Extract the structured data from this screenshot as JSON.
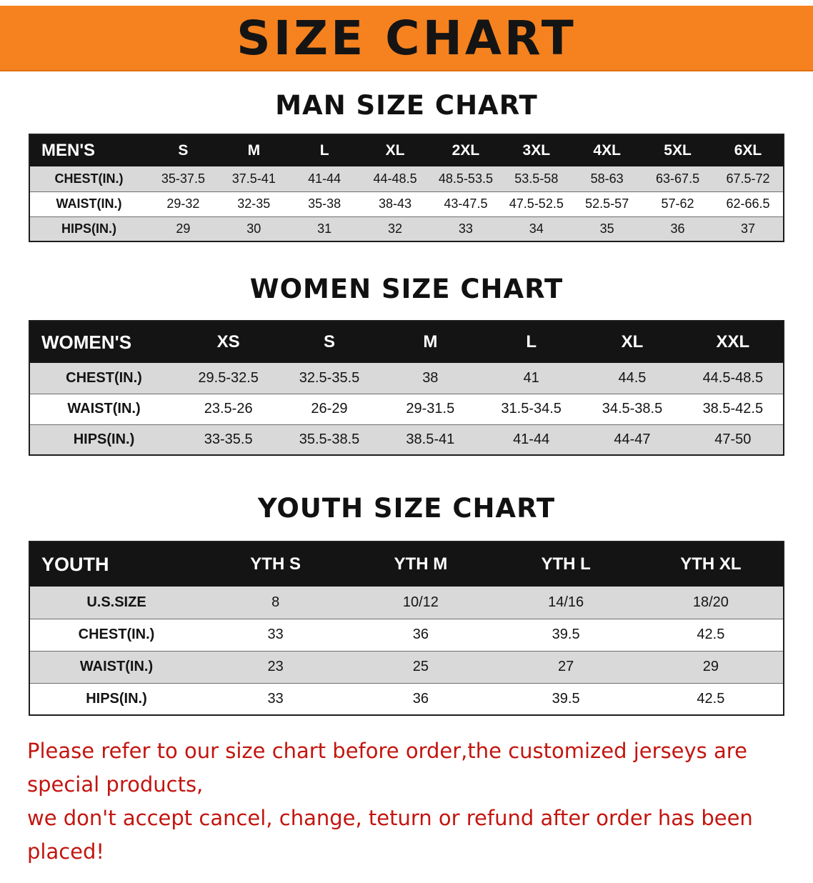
{
  "banner": {
    "title": "SIZE CHART",
    "bg_color": "#f5821f",
    "text_color": "#141414"
  },
  "sections": [
    {
      "id": "men",
      "heading": "MAN SIZE CHART",
      "table": {
        "header": [
          "MEN'S",
          "S",
          "M",
          "L",
          "XL",
          "2XL",
          "3XL",
          "4XL",
          "5XL",
          "6XL"
        ],
        "rows": [
          [
            "CHEST(IN.)",
            "35-37.5",
            "37.5-41",
            "41-44",
            "44-48.5",
            "48.5-53.5",
            "53.5-58",
            "58-63",
            "63-67.5",
            "67.5-72"
          ],
          [
            "WAIST(IN.)",
            "29-32",
            "32-35",
            "35-38",
            "38-43",
            "43-47.5",
            "47.5-52.5",
            "52.5-57",
            "57-62",
            "62-66.5"
          ],
          [
            "HIPS(IN.)",
            "29",
            "30",
            "31",
            "32",
            "33",
            "34",
            "35",
            "36",
            "37"
          ]
        ]
      }
    },
    {
      "id": "women",
      "heading": "WOMEN SIZE CHART",
      "table": {
        "header": [
          "WOMEN'S",
          "XS",
          "S",
          "M",
          "L",
          "XL",
          "XXL"
        ],
        "rows": [
          [
            "CHEST(IN.)",
            "29.5-32.5",
            "32.5-35.5",
            "38",
            "41",
            "44.5",
            "44.5-48.5"
          ],
          [
            "WAIST(IN.)",
            "23.5-26",
            "26-29",
            "29-31.5",
            "31.5-34.5",
            "34.5-38.5",
            "38.5-42.5"
          ],
          [
            "HIPS(IN.)",
            "33-35.5",
            "35.5-38.5",
            "38.5-41",
            "41-44",
            "44-47",
            "47-50"
          ]
        ]
      }
    },
    {
      "id": "youth",
      "heading": "YOUTH SIZE CHART",
      "table": {
        "header": [
          "YOUTH",
          "YTH S",
          "YTH M",
          "YTH L",
          "YTH XL"
        ],
        "rows": [
          [
            "U.S.SIZE",
            "8",
            "10/12",
            "14/16",
            "18/20"
          ],
          [
            "CHEST(IN.)",
            "33",
            "36",
            "39.5",
            "42.5"
          ],
          [
            "WAIST(IN.)",
            "23",
            "25",
            "27",
            "29"
          ],
          [
            "HIPS(IN.)",
            "33",
            "36",
            "39.5",
            "42.5"
          ]
        ]
      }
    }
  ],
  "table_style": {
    "header_bg": "#141414",
    "header_text": "#ffffff",
    "stripe_gray": "#d9d9d9",
    "stripe_white": "#ffffff"
  },
  "disclaimer": {
    "line1": "Please refer to our size chart before order,the customized jerseys are special products,",
    "line2": "we don't accept cancel, change, teturn or refund after order has been placed!",
    "color": "#c3150f"
  }
}
